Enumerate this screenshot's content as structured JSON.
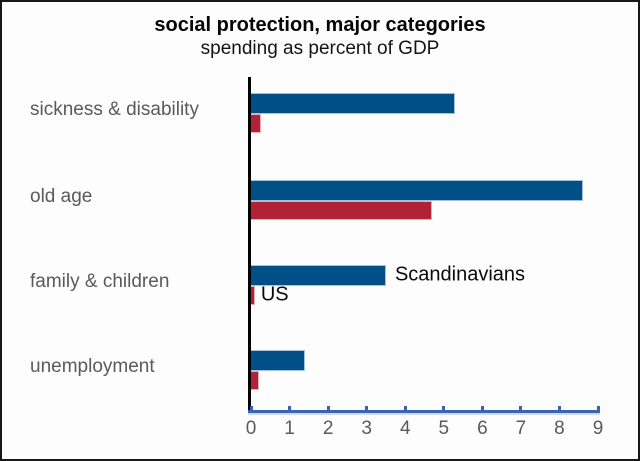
{
  "header": {
    "title": "social protection, major categories",
    "subtitle": "spending as percent of GDP"
  },
  "chart_data": {
    "type": "bar",
    "orientation": "horizontal",
    "title": "social protection, major categories",
    "subtitle": "spending as percent of GDP",
    "xlabel": "",
    "ylabel": "",
    "xlim": [
      0,
      9
    ],
    "xticks": [
      0,
      1,
      2,
      3,
      4,
      5,
      6,
      7,
      8,
      9
    ],
    "grid": "off",
    "legend_position": "inline annotations next to family & children bars",
    "categories": [
      "sickness & disability",
      "old age",
      "family & children",
      "unemployment"
    ],
    "series": [
      {
        "name": "Scandinavians",
        "color": "#004f86",
        "edge_color": "#a3c0dc",
        "values": [
          5.3,
          8.6,
          3.5,
          1.4
        ]
      },
      {
        "name": "US",
        "color": "#b22234",
        "edge_color": "#e4afbb",
        "values": [
          0.25,
          4.7,
          0.1,
          0.2
        ]
      }
    ],
    "annotations": [
      {
        "text": "Scandinavians",
        "series": 0,
        "category_index": 2
      },
      {
        "text": "US",
        "series": 1,
        "category_index": 2
      }
    ],
    "axis_color": "#3c64ae",
    "tick_label_color": "#5a5a5a",
    "category_label_color": "#5a5a5a"
  }
}
